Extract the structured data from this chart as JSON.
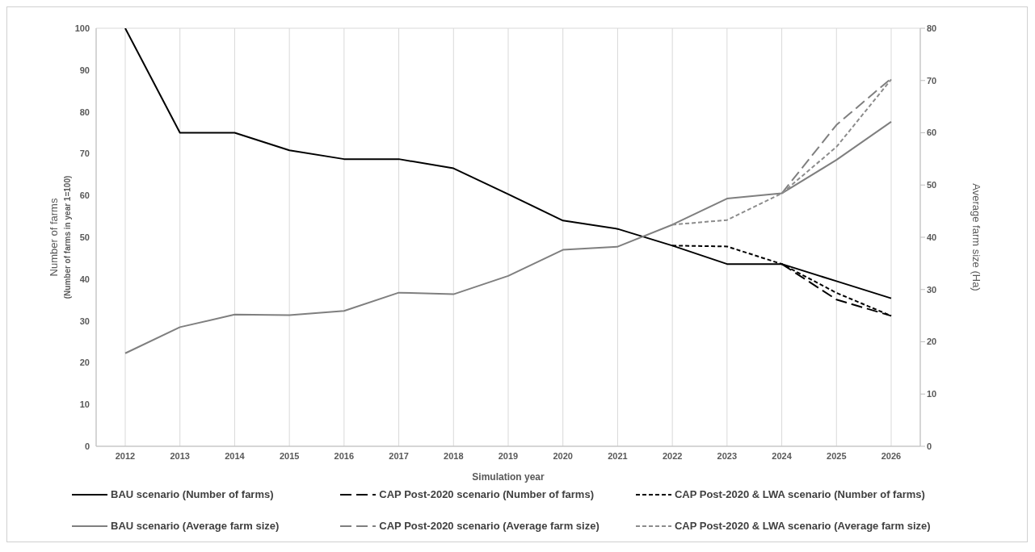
{
  "chart_data": {
    "type": "line",
    "xlabel": "Simulation year",
    "ylabel": "Number of farms (Number of farms in year 1=100)",
    "y2label": "Average farm size (Ha)",
    "categories": [
      "2012",
      "2013",
      "2014",
      "2015",
      "2016",
      "2017",
      "2018",
      "2019",
      "2020",
      "2021",
      "2022",
      "2023",
      "2024",
      "2025",
      "2026"
    ],
    "ylim": [
      0,
      100
    ],
    "yticks": [
      0,
      10,
      20,
      30,
      40,
      50,
      60,
      70,
      80,
      90,
      100
    ],
    "y2lim": [
      0,
      80
    ],
    "y2ticks": [
      0,
      10,
      20,
      30,
      40,
      50,
      60,
      70,
      80
    ],
    "grid": true,
    "legend": "bottom",
    "marker": "none",
    "series": [
      {
        "name": "BAU scenario (Number of  farms)",
        "color": "#000000",
        "line_style": "solid",
        "values": [
          100,
          75,
          75,
          70.8,
          68.7,
          68.7,
          66.5,
          60.3,
          54,
          52,
          48,
          43.6,
          43.6,
          39.5,
          35.4
        ]
      },
      {
        "name": "CAP Post-2020 scenario (Number of farms)",
        "color": "#000000",
        "line_style": "dashed",
        "values": [
          null,
          null,
          null,
          null,
          null,
          null,
          null,
          null,
          null,
          null,
          null,
          null,
          43.6,
          35.1,
          31.2
        ]
      },
      {
        "name": "CAP Post-2020 & LWA scenario (Number of farms)",
        "color": "#000000",
        "line_style": "dotted",
        "values": [
          null,
          null,
          null,
          null,
          null,
          null,
          null,
          null,
          null,
          null,
          48,
          47.8,
          43.6,
          36.7,
          31.2
        ]
      },
      {
        "name": "BAU scenario (Average farm size)",
        "color": "#7f7f7f",
        "line_style": "solid",
        "axis": "y2",
        "values": [
          17.8,
          22.8,
          25.2,
          25.1,
          25.9,
          29.4,
          29.1,
          32.6,
          37.6,
          38.2,
          42.4,
          47.4,
          48.4,
          54.8,
          62.1
        ]
      },
      {
        "name": "CAP Post-2020 scenario (Average farm size)",
        "color": "#7f7f7f",
        "line_style": "dashed",
        "axis": "y2",
        "values": [
          null,
          null,
          null,
          null,
          null,
          null,
          null,
          null,
          null,
          null,
          null,
          null,
          48.4,
          61.5,
          70.4
        ]
      },
      {
        "name": "CAP Post-2020 & LWA scenario (Average farm size)",
        "color": "#8c8c8c",
        "line_style": "dotted",
        "axis": "y2",
        "values": [
          null,
          null,
          null,
          null,
          null,
          null,
          null,
          null,
          null,
          null,
          42.4,
          43.3,
          48.4,
          57.3,
          70.2
        ]
      }
    ]
  }
}
